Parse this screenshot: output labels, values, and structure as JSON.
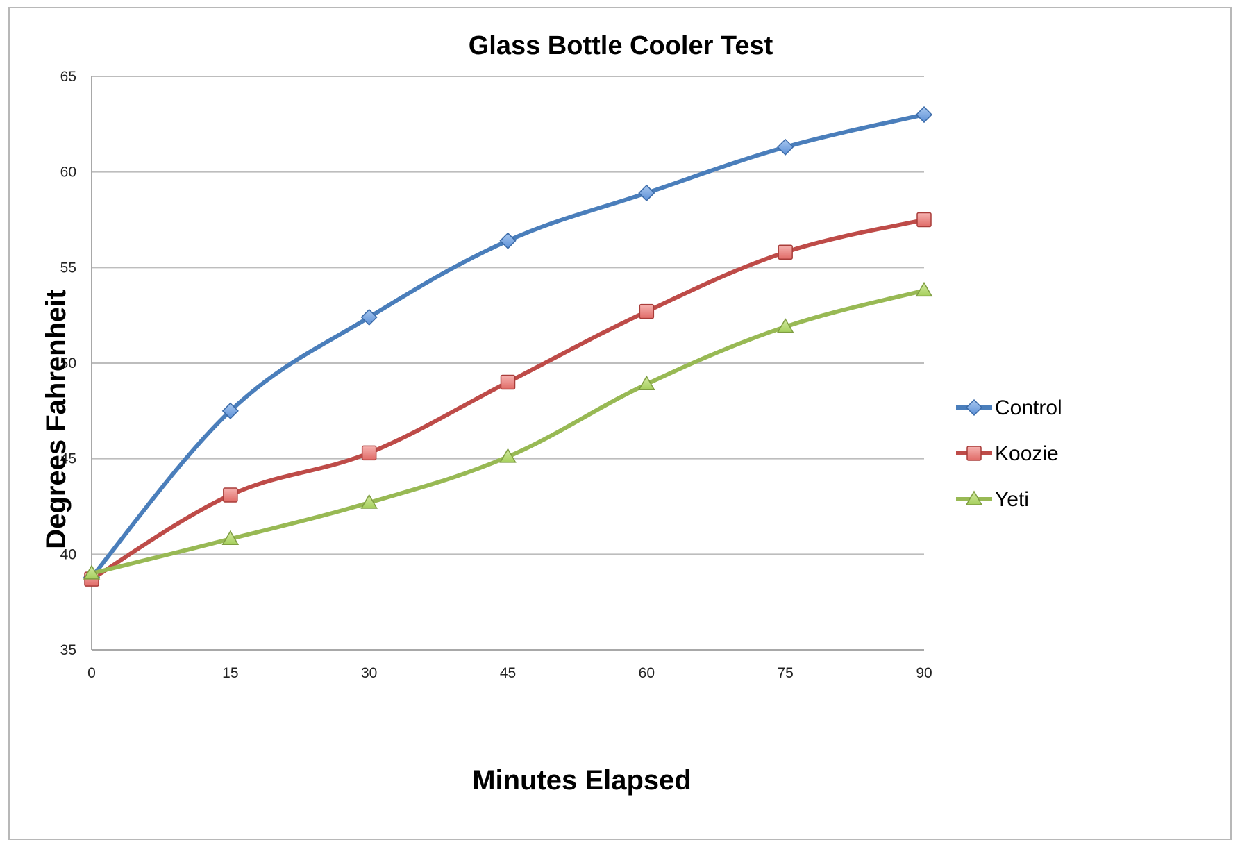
{
  "chart_data": {
    "type": "line",
    "title": "Glass Bottle Cooler Test",
    "xlabel": "Minutes Elapsed",
    "ylabel": "Degrees Fahrenheit",
    "x": [
      0,
      15,
      30,
      45,
      60,
      75,
      90
    ],
    "x_tick_labels": [
      "0",
      "15",
      "30",
      "45",
      "60",
      "75",
      "90"
    ],
    "y_tick_labels": [
      "35",
      "40",
      "45",
      "50",
      "55",
      "60",
      "65"
    ],
    "xlim": [
      0,
      90
    ],
    "ylim": [
      35,
      65
    ],
    "y_ticks": [
      35,
      40,
      45,
      50,
      55,
      60,
      65
    ],
    "grid": "horizontal",
    "legend_position": "right",
    "smooth": true,
    "series": [
      {
        "name": "Control",
        "color": "#4a7ebb",
        "marker": "diamond",
        "values": [
          38.8,
          47.5,
          52.4,
          56.4,
          58.9,
          61.3,
          63.0
        ]
      },
      {
        "name": "Koozie",
        "color": "#be4b48",
        "marker": "square",
        "values": [
          38.7,
          43.1,
          45.3,
          49.0,
          52.7,
          55.8,
          57.5
        ]
      },
      {
        "name": "Yeti",
        "color": "#98b954",
        "marker": "triangle",
        "values": [
          39.0,
          40.8,
          42.7,
          45.1,
          48.9,
          51.9,
          53.8
        ]
      }
    ]
  }
}
